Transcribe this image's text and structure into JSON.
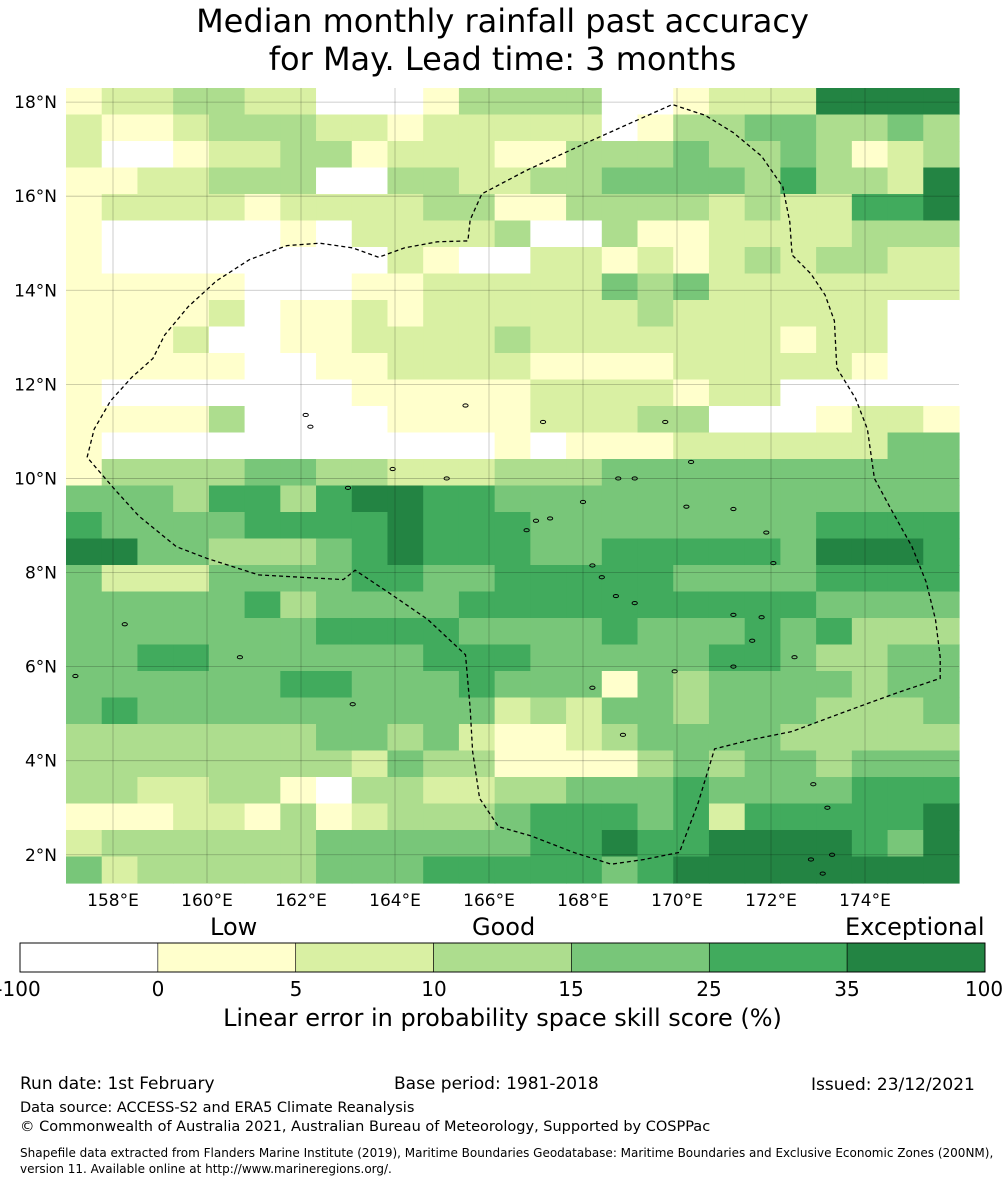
{
  "title_line1": "Median monthly rainfall past accuracy",
  "title_line2": "for May. Lead time: 3 months",
  "map": {
    "lon_range": [
      157,
      176
    ],
    "lat_range": [
      1.4,
      18.3
    ],
    "cell_size_deg": [
      0.8333,
      0.5556
    ],
    "x_ticks": [
      {
        "value": 158,
        "label": "158°E"
      },
      {
        "value": 160,
        "label": "160°E"
      },
      {
        "value": 162,
        "label": "162°E"
      },
      {
        "value": 164,
        "label": "164°E"
      },
      {
        "value": 166,
        "label": "166°E"
      },
      {
        "value": 168,
        "label": "168°E"
      },
      {
        "value": 170,
        "label": "170°E"
      },
      {
        "value": 172,
        "label": "172°E"
      },
      {
        "value": 174,
        "label": "174°E"
      }
    ],
    "y_ticks": [
      {
        "value": 18,
        "label": "18°N"
      },
      {
        "value": 16,
        "label": "16°N"
      },
      {
        "value": 14,
        "label": "14°N"
      },
      {
        "value": 12,
        "label": "12°N"
      },
      {
        "value": 10,
        "label": "10°N"
      },
      {
        "value": 8,
        "label": "8°N"
      },
      {
        "value": 6,
        "label": "6°N"
      },
      {
        "value": 4,
        "label": "4°N"
      },
      {
        "value": 2,
        "label": "2°N"
      }
    ],
    "grid_rows_north_to_south": [
      "1223322000133330012226666",
      "2112333221222220133443343",
      "2001223312221133343343123",
      "1122333003322334444353326",
      "1222212222331133332322556",
      "1000001022223003112222333",
      "1000000002100221212323322",
      "1111100011222224342222222",
      "1111201121222222322222200",
      "1112001122223222222212200",
      "1111100112222111122222100",
      "1000000011111222212200000",
      "1111300001111222330001221",
      "1000000000001011122222244",
      "1333344332223334444444444",
      "4443553566554444444444444",
      "5444455556555444444445555",
      "6644333456555445555546665",
      "4222444455445555544445555",
      "4444453444455555555554444",
      "4444444555544445444545333",
      "4455444444555444445543344",
      "4444445544454441434444344",
      "4544444444442324434443334",
      "3333333443421123444433333",
      "3333333324331111343443444",
      "3322331033223344454444555",
      "1112213123334555452555556",
      "2333333444444556556666546",
      "4233333444555554566666666"
    ],
    "eez_boundary": [
      [
        157.45,
        10.45
      ],
      [
        157.6,
        11.05
      ],
      [
        157.95,
        11.65
      ],
      [
        158.4,
        12.15
      ],
      [
        158.85,
        12.55
      ],
      [
        159.1,
        13.05
      ],
      [
        159.6,
        13.65
      ],
      [
        160.2,
        14.2
      ],
      [
        160.9,
        14.65
      ],
      [
        161.7,
        14.95
      ],
      [
        162.4,
        15.0
      ],
      [
        163.1,
        14.9
      ],
      [
        163.65,
        14.7
      ],
      [
        164.2,
        14.9
      ],
      [
        164.9,
        15.03
      ],
      [
        165.55,
        15.05
      ],
      [
        165.6,
        15.5
      ],
      [
        165.85,
        16.05
      ],
      [
        166.8,
        16.55
      ],
      [
        168.0,
        17.1
      ],
      [
        169.0,
        17.55
      ],
      [
        169.9,
        17.95
      ],
      [
        170.6,
        17.72
      ],
      [
        171.2,
        17.35
      ],
      [
        171.8,
        16.85
      ],
      [
        172.25,
        16.2
      ],
      [
        172.4,
        15.45
      ],
      [
        172.45,
        14.75
      ],
      [
        172.85,
        14.35
      ],
      [
        173.15,
        13.9
      ],
      [
        173.35,
        13.35
      ],
      [
        173.4,
        12.35
      ],
      [
        173.8,
        11.7
      ],
      [
        174.05,
        11.05
      ],
      [
        174.2,
        10.0
      ],
      [
        174.55,
        9.35
      ],
      [
        175.0,
        8.55
      ],
      [
        175.3,
        7.8
      ],
      [
        175.5,
        7.0
      ],
      [
        175.6,
        6.2
      ],
      [
        175.6,
        5.75
      ],
      [
        174.7,
        5.45
      ],
      [
        173.6,
        5.05
      ],
      [
        172.45,
        4.62
      ],
      [
        171.6,
        4.45
      ],
      [
        170.8,
        4.25
      ],
      [
        170.45,
        3.1
      ],
      [
        170.05,
        2.05
      ],
      [
        169.3,
        1.9
      ],
      [
        168.6,
        1.8
      ],
      [
        167.8,
        2.05
      ],
      [
        166.9,
        2.4
      ],
      [
        166.2,
        2.6
      ],
      [
        165.8,
        3.2
      ],
      [
        165.65,
        4.2
      ],
      [
        165.6,
        5.1
      ],
      [
        165.5,
        6.25
      ],
      [
        164.7,
        7.0
      ],
      [
        163.9,
        7.55
      ],
      [
        163.15,
        8.05
      ],
      [
        162.9,
        7.85
      ],
      [
        161.1,
        7.95
      ],
      [
        160.0,
        8.3
      ],
      [
        159.35,
        8.55
      ],
      [
        158.55,
        9.2
      ],
      [
        158.05,
        9.75
      ],
      [
        157.45,
        10.45
      ]
    ],
    "islands": [
      [
        158.25,
        6.9
      ],
      [
        157.2,
        5.8
      ],
      [
        160.7,
        6.2
      ],
      [
        163.1,
        5.2
      ],
      [
        163.95,
        10.2
      ],
      [
        162.1,
        11.35
      ],
      [
        162.2,
        11.1
      ],
      [
        165.5,
        11.55
      ],
      [
        167.15,
        11.2
      ],
      [
        169.75,
        11.2
      ],
      [
        166.8,
        8.9
      ],
      [
        167.3,
        9.15
      ],
      [
        168.2,
        8.15
      ],
      [
        168.4,
        7.9
      ],
      [
        168.7,
        7.5
      ],
      [
        169.1,
        7.35
      ],
      [
        171.2,
        7.1
      ],
      [
        171.8,
        7.05
      ],
      [
        171.6,
        6.55
      ],
      [
        171.2,
        6.0
      ],
      [
        172.5,
        6.2
      ],
      [
        168.2,
        5.55
      ],
      [
        168.85,
        4.55
      ],
      [
        169.95,
        5.9
      ],
      [
        172.9,
        3.5
      ],
      [
        173.2,
        3.0
      ],
      [
        172.85,
        1.9
      ],
      [
        173.1,
        1.6
      ],
      [
        173.3,
        2.0
      ],
      [
        168.0,
        9.5
      ],
      [
        170.3,
        10.35
      ],
      [
        170.2,
        9.4
      ],
      [
        171.2,
        9.35
      ],
      [
        171.9,
        8.85
      ],
      [
        172.05,
        8.2
      ],
      [
        169.1,
        10.0
      ],
      [
        168.75,
        10.0
      ],
      [
        163.0,
        9.8
      ],
      [
        165.1,
        10.0
      ],
      [
        167.0,
        9.1
      ]
    ]
  },
  "colorbar": {
    "category_labels": {
      "low": "Low",
      "good": "Good",
      "exceptional": "Exceptional"
    },
    "tick_labels": [
      "-100",
      "0",
      "5",
      "10",
      "15",
      "25",
      "35",
      "100"
    ],
    "colors": [
      "#ffffff",
      "#ffffcc",
      "#d9f0a3",
      "#addd8e",
      "#78c679",
      "#41ab5d",
      "#238443"
    ],
    "title": "Linear error in probability space skill score (%)"
  },
  "footer": {
    "run_date": "Run date: 1st February",
    "base_period": "Base period: 1981-2018",
    "issued": "Issued: 23/12/2021",
    "data_source": "Data source: ACCESS-S2 and ERA5 Climate Reanalysis",
    "copyright": "© Commonwealth of Australia 2021, Australian Bureau of Meteorology, Supported by COSPPac",
    "shapefile_line1": "Shapefile data extracted from Flanders Marine Institute (2019), Maritime Boundaries Geodatabase: Maritime Boundaries and Exclusive Economic Zones (200NM),",
    "shapefile_line2": "version 11. Available online at http://www.marineregions.org/."
  }
}
